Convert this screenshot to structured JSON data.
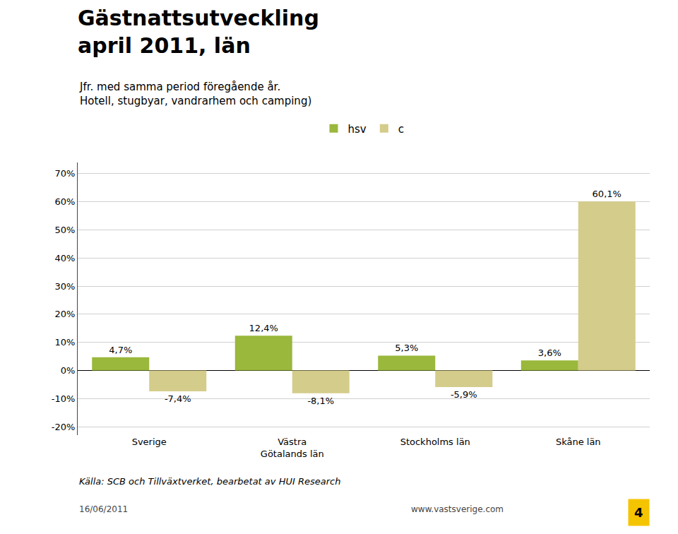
{
  "chart_data": {
    "type": "bar",
    "title": "Gästnattsutveckling\napril 2011, län",
    "subtitle": "Jfr. med samma period föregående år.\nHotell, stugbyar, vandrarhem och camping)",
    "categories": [
      "Sverige",
      "Västra\nGötalands län",
      "Stockholms län",
      "Skåne län"
    ],
    "series": [
      {
        "name": "hsv",
        "color": "#9ab83c",
        "values": [
          4.7,
          12.4,
          5.3,
          3.6
        ],
        "value_labels": [
          "4,7%",
          "12,4%",
          "5,3%",
          "3,6%"
        ]
      },
      {
        "name": "c",
        "color": "#d4cc8a",
        "values": [
          -7.4,
          -8.1,
          -5.9,
          60.1
        ],
        "value_labels": [
          "-7,4%",
          "-8,1%",
          "-5,9%",
          "60,1%"
        ]
      }
    ],
    "ylim": [
      -23,
      74
    ],
    "yticks": [
      {
        "value": -20,
        "label": "-20%"
      },
      {
        "value": -10,
        "label": "-10%"
      },
      {
        "value": 0,
        "label": "0%"
      },
      {
        "value": 10,
        "label": "10%"
      },
      {
        "value": 20,
        "label": "20%"
      },
      {
        "value": 30,
        "label": "30%"
      },
      {
        "value": 40,
        "label": "40%"
      },
      {
        "value": 50,
        "label": "50%"
      },
      {
        "value": 60,
        "label": "60%"
      },
      {
        "value": 70,
        "label": "70%"
      }
    ],
    "grid": true,
    "legend": "top",
    "data_labels": true,
    "annotations": [
      "Källa: SCB och Tillväxtverket, bearbetat av HUI Research",
      "16/06/2011",
      "www.vastsverige.com",
      "4"
    ]
  }
}
